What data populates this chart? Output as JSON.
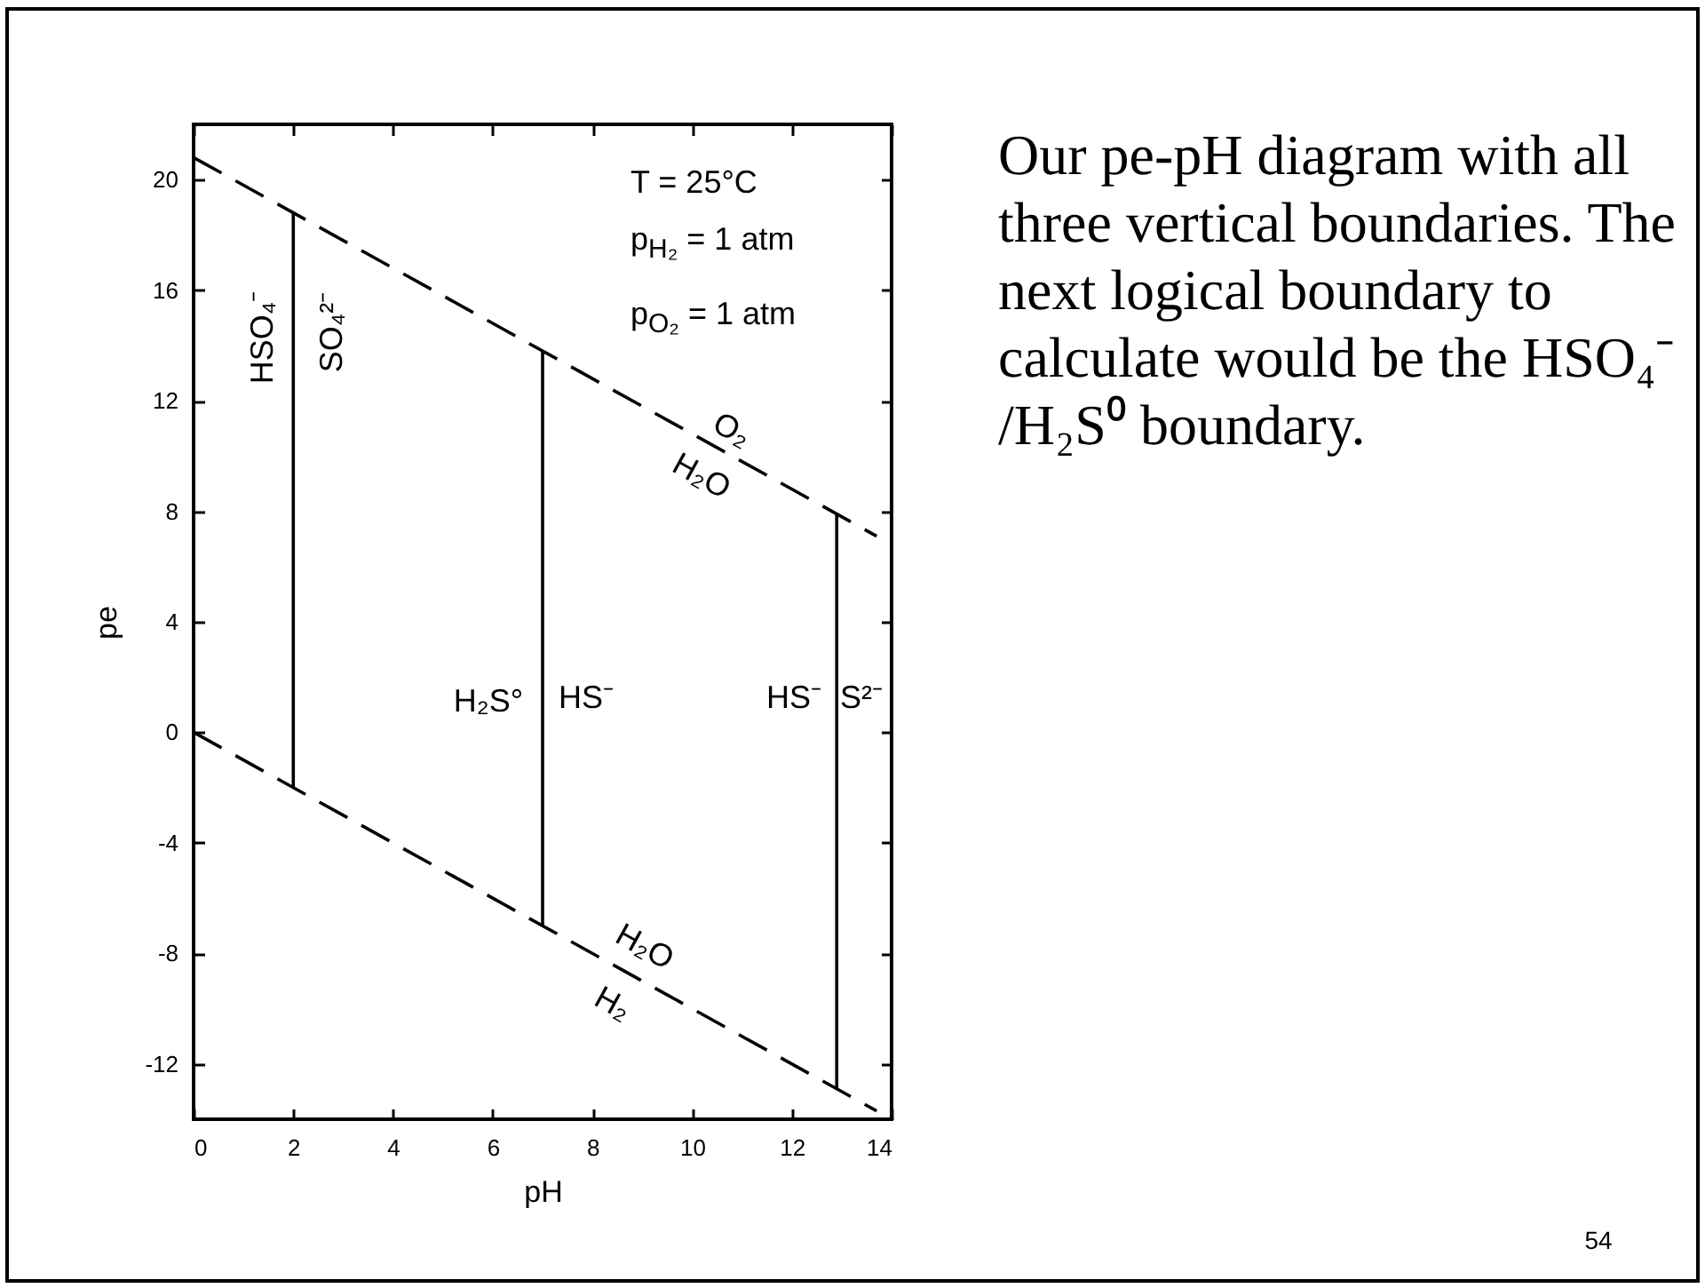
{
  "chart_data": {
    "type": "line",
    "xlabel": "pH",
    "ylabel": "pe",
    "xlim": [
      0,
      14
    ],
    "ylim": [
      -14,
      22
    ],
    "xticks": [
      0,
      2,
      4,
      6,
      8,
      10,
      12,
      14
    ],
    "yticks": [
      -12,
      -8,
      -4,
      0,
      4,
      8,
      12,
      16,
      20
    ],
    "series": [
      {
        "color": "#000000",
        "line_style": "dashed",
        "x": [
          0,
          13.7
        ],
        "values": [
          20.8,
          7.1
        ]
      },
      {
        "color": "#000000",
        "line_style": "dashed",
        "x": [
          0,
          13.7
        ],
        "values": [
          0,
          -13.7
        ]
      },
      {
        "color": "#000000",
        "line_style": "solid",
        "x": [
          2,
          2
        ],
        "values": [
          -2,
          18.8
        ]
      },
      {
        "color": "#000000",
        "line_style": "solid",
        "x": [
          7,
          7
        ],
        "values": [
          -7,
          13.8
        ]
      },
      {
        "color": "#000000",
        "line_style": "solid",
        "x": [
          12.9,
          12.9
        ],
        "values": [
          -12.9,
          7.9
        ]
      }
    ],
    "annotations": [
      "HSO₄⁻",
      "SO₄²⁻",
      "O₂",
      "H₂O",
      "H₂S°",
      "HS⁻",
      "HS⁻",
      "S²⁻",
      "H₂O",
      "H₂",
      "T = 25°C",
      "p$_{H₂}$ = 1 atm",
      "p$_{O₂}$ = 1 atm",
      "Our pe-pH diagram with all\nthree vertical boundaries. The\nnext logical boundary to\ncalculate would be the HSO₄⁻\n/H₂S⁰ boundary.",
      "54"
    ]
  }
}
